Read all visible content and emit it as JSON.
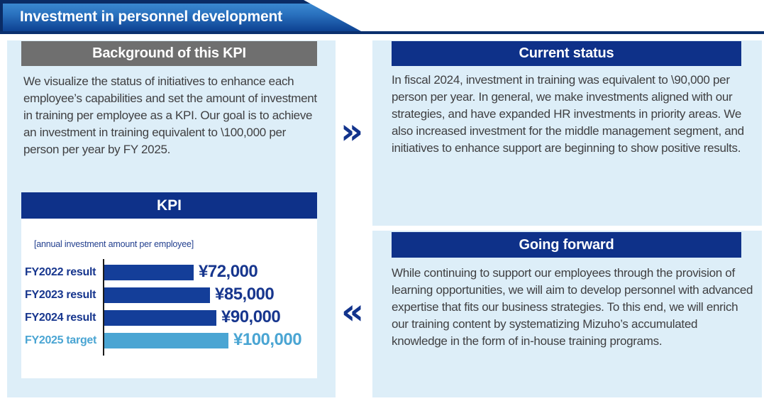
{
  "banner": {
    "title": "Investment in personnel development"
  },
  "background_section": {
    "title": "Background of this KPI",
    "body": "We visualize the status of initiatives to enhance each employee’s capabilities and set the amount of investment in training per employee as a KPI. Our goal is to achieve an investment in training equivalent to \\100,000 per person per year by FY 2025."
  },
  "kpi_section": {
    "title": "KPI",
    "note": "[annual investment amount per employee]",
    "rows": [
      {
        "label": "FY2022 result",
        "value": 72000,
        "value_label": "¥72,000",
        "type": "result"
      },
      {
        "label": "FY2023 result",
        "value": 85000,
        "value_label": "¥85,000",
        "type": "result"
      },
      {
        "label": "FY2024 result",
        "value": 90000,
        "value_label": "¥90,000",
        "type": "result"
      },
      {
        "label": "FY2025 target",
        "value": 100000,
        "value_label": "¥100,000",
        "type": "target"
      }
    ]
  },
  "current_status": {
    "title": "Current status",
    "body": "In fiscal 2024, investment in training was equivalent to \\90,000 per person per year. In general, we make investments aligned with our strategies, and have expanded HR investments in priority areas. We also increased investment for the middle management segment, and initiatives to enhance support are beginning to show positive results."
  },
  "going_forward": {
    "title": "Going forward",
    "body": "While continuing to support our employees through the provision of learning opportunities, we will aim to develop personnel with advanced expertise that fits our business strategies. To this end, we will enrich our training content by systematizing Mizuho’s accumulated knowledge in the form of in-house training programs."
  },
  "icons": {
    "forward": "»",
    "backward": "«"
  },
  "colors": {
    "accent_navy": "#0e3189",
    "navy_text": "#17368e",
    "bar_result": "#143e99",
    "bar_target": "#4aa5d3",
    "panel_light_blue": "#ddeef8",
    "header_gray": "#6f6f6f",
    "banner_gradient_top": "#3a88d0",
    "banner_gradient_bottom": "#0d4191",
    "banner_edge_navy": "#0a2c66",
    "rule_navy": "#0b306e",
    "body_text": "#3f3f41"
  },
  "chart_data": {
    "type": "bar",
    "orientation": "horizontal",
    "title": "KPI",
    "note": "[annual investment amount per employee]",
    "categories": [
      "FY2022 result",
      "FY2023 result",
      "FY2024 result",
      "FY2025 target"
    ],
    "values": [
      72000,
      85000,
      90000,
      100000
    ],
    "value_labels": [
      "¥72,000",
      "¥85,000",
      "¥90,000",
      "¥100,000"
    ],
    "series_type": [
      "result",
      "result",
      "result",
      "target"
    ],
    "xlim": [
      0,
      100000
    ],
    "grid": false,
    "legend": false,
    "bar_colors": {
      "result": "#143e99",
      "target": "#4aa5d3"
    }
  }
}
